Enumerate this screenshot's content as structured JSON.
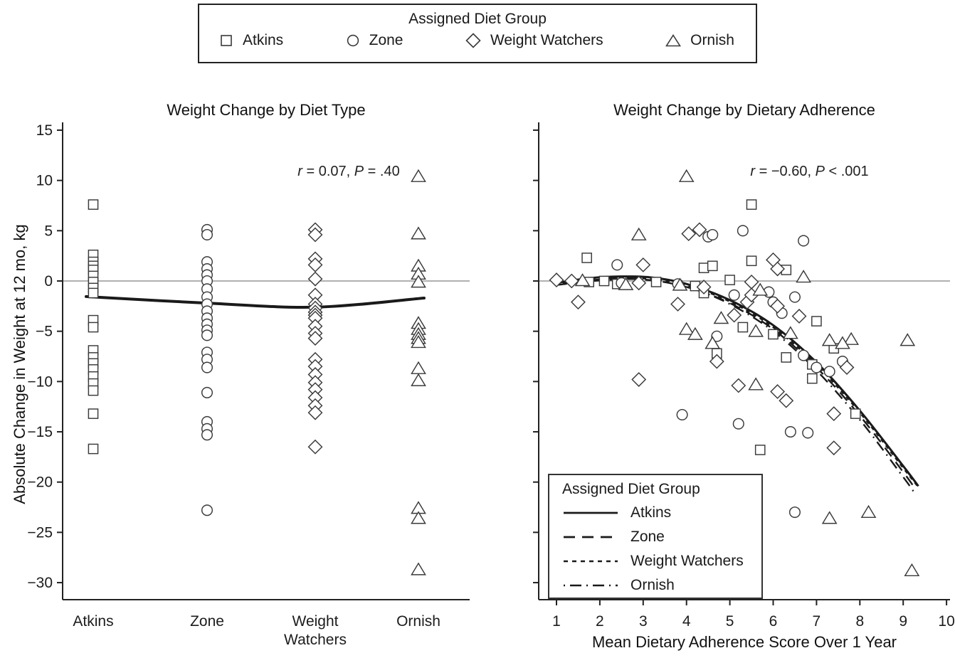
{
  "top_legend": {
    "title": "Assigned Diet Group",
    "items": [
      {
        "label": "Atkins",
        "marker": "square"
      },
      {
        "label": "Zone",
        "marker": "circle"
      },
      {
        "label": "Weight Watchers",
        "marker": "diamond"
      },
      {
        "label": "Ornish",
        "marker": "triangle"
      }
    ]
  },
  "y_axis_title": "Absolute Change in Weight at 12 mo, kg",
  "chart_data": [
    {
      "type": "scatter",
      "title": "Weight Change by Diet Type",
      "stat": {
        "r_sym": "r",
        "r_val": " = 0.07, ",
        "p_sym": "P",
        "p_val": " = .40"
      },
      "ylabel": "Absolute Change in Weight at 12 mo, kg",
      "ylim": [
        -30,
        15
      ],
      "ytick_values": [
        15,
        10,
        5,
        0,
        -5,
        -10,
        -15,
        -20,
        -25,
        -30
      ],
      "ytick_labels": [
        "15",
        "10",
        "5",
        "0",
        "−5",
        "−10",
        "−15",
        "−20",
        "−25",
        "−30"
      ],
      "categories": [
        "Atkins",
        "Zone",
        "Weight Watchers",
        "Ornish"
      ],
      "grid": "zero-line-only",
      "series": [
        {
          "name": "Atkins",
          "marker": "square",
          "values": [
            7.6,
            2.6,
            1.9,
            1.5,
            1.1,
            0.5,
            -0.1,
            -0.7,
            -1.2,
            -3.9,
            -4.6,
            -6.9,
            -7.6,
            -8.2,
            -8.8,
            -9.5,
            -10.2,
            -10.9,
            -13.2,
            -16.7
          ]
        },
        {
          "name": "Zone",
          "marker": "circle",
          "values": [
            5.1,
            4.6,
            1.9,
            1.2,
            0.6,
            0.0,
            -0.8,
            -1.6,
            -2.3,
            -3.0,
            -3.7,
            -4.3,
            -4.9,
            -5.4,
            -7.1,
            -7.8,
            -8.6,
            -11.1,
            -14.0,
            -14.7,
            -15.3,
            -22.8
          ]
        },
        {
          "name": "Weight Watchers",
          "marker": "diamond",
          "values": [
            5.1,
            4.6,
            2.2,
            1.6,
            0.2,
            -1.4,
            -2.3,
            -2.7,
            -3.1,
            -3.4,
            -3.7,
            -4.5,
            -5.2,
            -5.7,
            -7.8,
            -8.5,
            -9.3,
            -10.1,
            -10.8,
            -11.6,
            -12.4,
            -13.1,
            -16.5
          ]
        },
        {
          "name": "Ornish",
          "marker": "triangle",
          "values": [
            10.4,
            4.7,
            1.5,
            0.7,
            -0.1,
            -4.2,
            -4.8,
            -5.3,
            -5.7,
            -6.1,
            -8.7,
            -9.9,
            -22.6,
            -23.6,
            -28.7
          ]
        }
      ],
      "trend_line": {
        "name": "mean weight change by group",
        "values": [
          -1.55,
          -2.2,
          -2.6,
          -1.7
        ]
      }
    },
    {
      "type": "scatter",
      "title": "Weight Change by Dietary Adherence",
      "stat": {
        "r_sym": "r",
        "r_val": " = −0.60, ",
        "p_sym": "P",
        "p_val": " < .001"
      },
      "xlabel": "Mean Dietary Adherence Score Over 1 Year",
      "xlim": [
        1,
        10
      ],
      "xtick_labels": [
        "1",
        "2",
        "3",
        "4",
        "5",
        "6",
        "7",
        "8",
        "9",
        "10"
      ],
      "ylim": [
        -30,
        15
      ],
      "ytick_values": [
        15,
        10,
        5,
        0,
        -5,
        -10,
        -15,
        -20,
        -25,
        -30
      ],
      "grid": "zero-line-only",
      "series": [
        {
          "name": "Atkins",
          "marker": "square",
          "points": [
            [
              1.7,
              2.3
            ],
            [
              1.75,
              -0.1
            ],
            [
              2.1,
              0.0
            ],
            [
              2.4,
              -0.3
            ],
            [
              3.3,
              -0.1
            ],
            [
              4.2,
              -0.5
            ],
            [
              4.4,
              1.3
            ],
            [
              4.6,
              1.5
            ],
            [
              5.0,
              0.1
            ],
            [
              5.5,
              7.6
            ],
            [
              5.5,
              2.0
            ],
            [
              6.3,
              1.1
            ],
            [
              4.4,
              -1.2
            ],
            [
              5.3,
              -4.6
            ],
            [
              6.0,
              -5.3
            ],
            [
              4.7,
              -7.2
            ],
            [
              6.3,
              -7.6
            ],
            [
              6.9,
              -8.3
            ],
            [
              7.0,
              -4.0
            ],
            [
              7.4,
              -6.7
            ],
            [
              6.9,
              -9.7
            ],
            [
              5.7,
              -16.8
            ],
            [
              7.9,
              -13.2
            ]
          ]
        },
        {
          "name": "Zone",
          "marker": "circle",
          "points": [
            [
              2.5,
              -0.2
            ],
            [
              3.8,
              -0.3
            ],
            [
              2.4,
              1.6
            ],
            [
              4.5,
              4.4
            ],
            [
              4.6,
              4.6
            ],
            [
              5.3,
              5.0
            ],
            [
              6.7,
              4.0
            ],
            [
              5.1,
              -1.4
            ],
            [
              5.9,
              -1.1
            ],
            [
              6.0,
              -2.1
            ],
            [
              6.5,
              -1.6
            ],
            [
              6.2,
              -3.2
            ],
            [
              4.7,
              -5.5
            ],
            [
              6.7,
              -7.4
            ],
            [
              7.0,
              -8.6
            ],
            [
              7.3,
              -9.0
            ],
            [
              7.6,
              -8.0
            ],
            [
              3.9,
              -13.3
            ],
            [
              5.2,
              -14.2
            ],
            [
              6.4,
              -15.0
            ],
            [
              6.8,
              -15.1
            ],
            [
              6.5,
              -23.0
            ]
          ]
        },
        {
          "name": "Weight Watchers",
          "marker": "diamond",
          "points": [
            [
              1.0,
              0.1
            ],
            [
              1.35,
              0.0
            ],
            [
              2.9,
              -0.2
            ],
            [
              3.0,
              1.6
            ],
            [
              4.4,
              -0.6
            ],
            [
              4.05,
              4.7
            ],
            [
              4.3,
              5.1
            ],
            [
              6.0,
              2.1
            ],
            [
              6.1,
              1.2
            ],
            [
              5.5,
              -0.1
            ],
            [
              1.5,
              -2.1
            ],
            [
              3.8,
              -2.3
            ],
            [
              5.4,
              -2.1
            ],
            [
              5.5,
              -1.4
            ],
            [
              6.1,
              -2.5
            ],
            [
              5.1,
              -3.4
            ],
            [
              6.6,
              -3.5
            ],
            [
              2.9,
              -9.8
            ],
            [
              4.7,
              -8.0
            ],
            [
              5.2,
              -10.4
            ],
            [
              6.1,
              -11.0
            ],
            [
              6.3,
              -11.9
            ],
            [
              7.7,
              -8.6
            ],
            [
              7.4,
              -13.2
            ],
            [
              7.4,
              -16.6
            ]
          ]
        },
        {
          "name": "Ornish",
          "marker": "triangle",
          "points": [
            [
              1.6,
              0.05
            ],
            [
              2.6,
              -0.35
            ],
            [
              2.9,
              4.6
            ],
            [
              4.0,
              10.4
            ],
            [
              3.85,
              -0.4
            ],
            [
              5.7,
              -0.9
            ],
            [
              6.7,
              0.4
            ],
            [
              4.0,
              -4.8
            ],
            [
              4.2,
              -5.3
            ],
            [
              4.8,
              -3.7
            ],
            [
              4.6,
              -6.2
            ],
            [
              5.6,
              -5.0
            ],
            [
              5.6,
              -10.3
            ],
            [
              6.4,
              -5.2
            ],
            [
              7.3,
              -5.9
            ],
            [
              7.8,
              -5.8
            ],
            [
              9.1,
              -5.9
            ],
            [
              7.6,
              -6.2
            ],
            [
              7.3,
              -23.6
            ],
            [
              8.2,
              -23.0
            ],
            [
              9.2,
              -28.8
            ]
          ]
        }
      ],
      "trend_lines": [
        {
          "name": "Atkins",
          "style": "solid",
          "points": [
            [
              1,
              -0.2
            ],
            [
              1.8,
              0.3
            ],
            [
              2.5,
              0.45
            ],
            [
              3.2,
              0.35
            ],
            [
              4,
              -0.3
            ],
            [
              5,
              -1.9
            ],
            [
              6,
              -4.4
            ],
            [
              7,
              -8.1
            ],
            [
              8,
              -12.9
            ],
            [
              9,
              -18.4
            ],
            [
              9.35,
              -20.4
            ]
          ]
        },
        {
          "name": "Zone",
          "style": "long-dash",
          "points": [
            [
              1,
              -0.4
            ],
            [
              2,
              0.05
            ],
            [
              3,
              0.15
            ],
            [
              4,
              -0.6
            ],
            [
              5,
              -2.2
            ],
            [
              6,
              -4.8
            ],
            [
              7,
              -8.6
            ],
            [
              8,
              -13.4
            ],
            [
              9,
              -19.0
            ],
            [
              9.3,
              -20.8
            ]
          ]
        },
        {
          "name": "Weight Watchers",
          "style": "short-dash",
          "points": [
            [
              1,
              -0.3
            ],
            [
              2,
              0.15
            ],
            [
              3,
              0.25
            ],
            [
              4,
              -0.45
            ],
            [
              5,
              -2.05
            ],
            [
              6,
              -4.6
            ],
            [
              7,
              -8.35
            ],
            [
              8,
              -13.1
            ],
            [
              9,
              -18.6
            ],
            [
              9.35,
              -20.5
            ]
          ]
        },
        {
          "name": "Ornish",
          "style": "dash-dot",
          "points": [
            [
              1,
              -0.25
            ],
            [
              2,
              0.2
            ],
            [
              3,
              0.3
            ],
            [
              4,
              -0.55
            ],
            [
              5,
              -2.3
            ],
            [
              6,
              -5.0
            ],
            [
              7,
              -8.9
            ],
            [
              8,
              -13.8
            ],
            [
              9,
              -19.5
            ],
            [
              9.25,
              -21.0
            ]
          ]
        }
      ],
      "legend": {
        "title": "Assigned Diet Group",
        "items": [
          {
            "label": "Atkins",
            "style": "solid"
          },
          {
            "label": "Zone",
            "style": "long-dash"
          },
          {
            "label": "Weight Watchers",
            "style": "short-dash"
          },
          {
            "label": "Ornish",
            "style": "dash-dot"
          }
        ]
      }
    }
  ],
  "colors": {
    "axis": "#222222",
    "marker_stroke": "#3a3a3a",
    "zero_line": "#808080",
    "trend": "#1a1a1a"
  }
}
